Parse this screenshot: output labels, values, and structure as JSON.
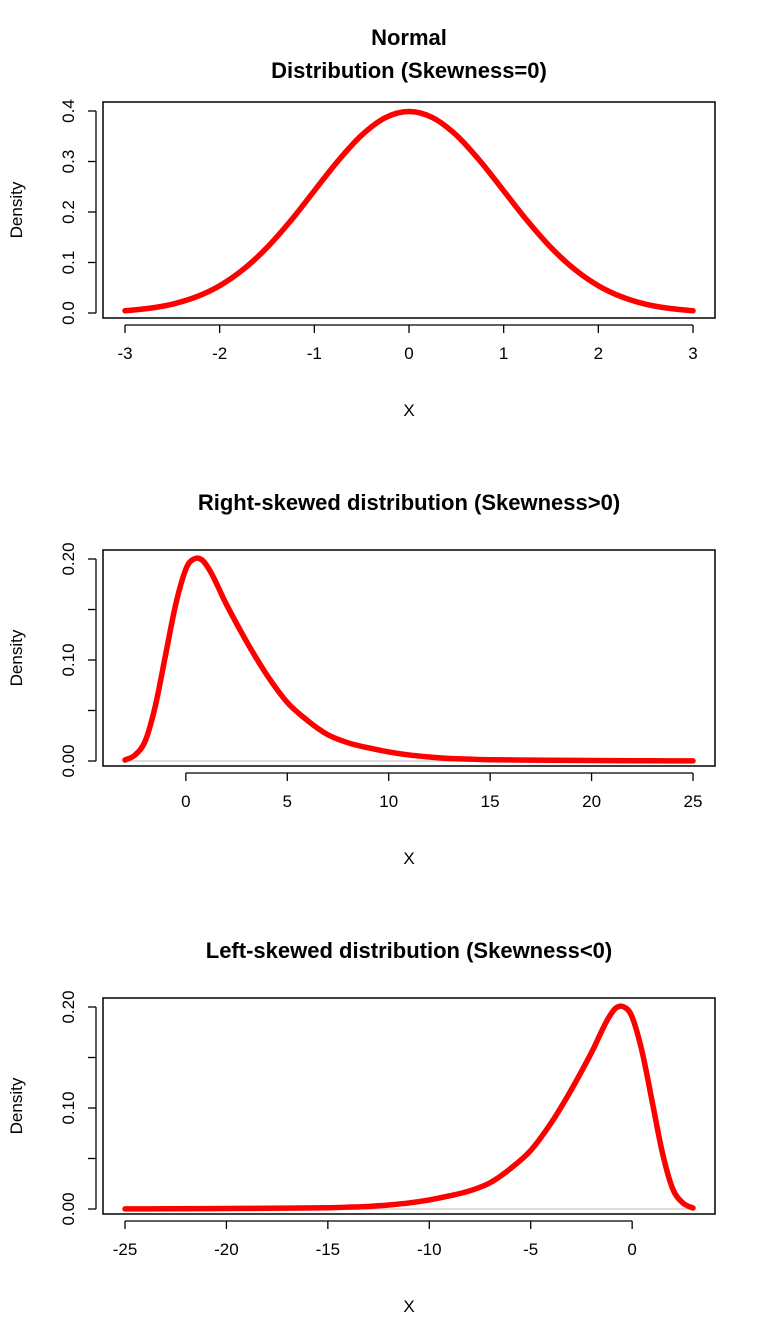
{
  "colors": {
    "curve": "#ff0000",
    "baseline": "#bbbbbb",
    "axis": "#000000"
  },
  "chart_data": [
    {
      "type": "line",
      "title": [
        "Normal",
        "Distribution (Skewness=0)"
      ],
      "xlabel": "X",
      "ylabel": "Density",
      "xlim": [
        -3,
        3
      ],
      "ylim": [
        0,
        0.4
      ],
      "xticks": [
        -3,
        -2,
        -1,
        0,
        1,
        2,
        3
      ],
      "xtick_labels": [
        "-3",
        "-2",
        "-1",
        "0",
        "1",
        "2",
        "3"
      ],
      "yticks": [
        0.0,
        0.1,
        0.2,
        0.3,
        0.4
      ],
      "ytick_labels": [
        "0.0",
        "0.1",
        "0.2",
        "0.3",
        "0.4"
      ],
      "baseline": false,
      "x": [
        -3,
        -2.75,
        -2.5,
        -2.25,
        -2,
        -1.75,
        -1.5,
        -1.25,
        -1,
        -0.75,
        -0.5,
        -0.25,
        0,
        0.25,
        0.5,
        0.75,
        1,
        1.25,
        1.5,
        1.75,
        2,
        2.25,
        2.5,
        2.75,
        3
      ],
      "y": [
        0.0044,
        0.0091,
        0.0175,
        0.0317,
        0.054,
        0.0863,
        0.1295,
        0.1826,
        0.242,
        0.3011,
        0.3521,
        0.3867,
        0.3989,
        0.3867,
        0.3521,
        0.3011,
        0.242,
        0.1826,
        0.1295,
        0.0863,
        0.054,
        0.0317,
        0.0175,
        0.0091,
        0.0044
      ]
    },
    {
      "type": "line",
      "title": [
        "Right-skewed distribution (Skewness>0)"
      ],
      "xlabel": "X",
      "ylabel": "Density",
      "xlim": [
        -3,
        25
      ],
      "ylim": [
        0,
        0.2
      ],
      "xticks": [
        0,
        5,
        10,
        15,
        20,
        25
      ],
      "xtick_labels": [
        "0",
        "5",
        "10",
        "15",
        "20",
        "25"
      ],
      "yticks": [
        0.0,
        0.05,
        0.1,
        0.15,
        0.2
      ],
      "ytick_labels": [
        "0.00",
        "",
        "0.10",
        "",
        "0.20"
      ],
      "baseline": true,
      "x": [
        -3,
        -2.5,
        -2,
        -1.5,
        -1,
        -0.5,
        0,
        0.4,
        0.8,
        1.2,
        1.6,
        2,
        3,
        4,
        5,
        6,
        7,
        8,
        9,
        10,
        11,
        12,
        13,
        14,
        15,
        17,
        19,
        21,
        23,
        25
      ],
      "y": [
        0.001,
        0.006,
        0.02,
        0.055,
        0.105,
        0.155,
        0.19,
        0.2,
        0.199,
        0.188,
        0.172,
        0.155,
        0.118,
        0.085,
        0.058,
        0.04,
        0.026,
        0.018,
        0.013,
        0.009,
        0.006,
        0.004,
        0.0025,
        0.0018,
        0.0013,
        0.0009,
        0.0006,
        0.0004,
        0.0002,
        0.0001
      ]
    },
    {
      "type": "line",
      "title": [
        "Left-skewed distribution (Skewness<0)"
      ],
      "xlabel": "X",
      "ylabel": "Density",
      "xlim": [
        -25,
        3
      ],
      "ylim": [
        0,
        0.2
      ],
      "xticks": [
        -25,
        -20,
        -15,
        -10,
        -5,
        0
      ],
      "xtick_labels": [
        "-25",
        "-20",
        "-15",
        "-10",
        "-5",
        "0"
      ],
      "yticks": [
        0.0,
        0.05,
        0.1,
        0.15,
        0.2
      ],
      "ytick_labels": [
        "0.00",
        "",
        "0.10",
        "",
        "0.20"
      ],
      "baseline": true,
      "x": [
        -25,
        -23,
        -21,
        -19,
        -17,
        -15,
        -14,
        -13,
        -12,
        -11,
        -10,
        -9,
        -8,
        -7,
        -6,
        -5,
        -4,
        -3,
        -2,
        -1.6,
        -1.2,
        -0.8,
        -0.4,
        0,
        0.5,
        1,
        1.5,
        2,
        2.5,
        3
      ],
      "y": [
        0.0001,
        0.0002,
        0.0004,
        0.0006,
        0.0009,
        0.0013,
        0.0018,
        0.0025,
        0.004,
        0.006,
        0.009,
        0.013,
        0.018,
        0.026,
        0.04,
        0.058,
        0.085,
        0.118,
        0.155,
        0.172,
        0.188,
        0.199,
        0.2,
        0.19,
        0.155,
        0.105,
        0.055,
        0.02,
        0.006,
        0.001
      ]
    }
  ]
}
